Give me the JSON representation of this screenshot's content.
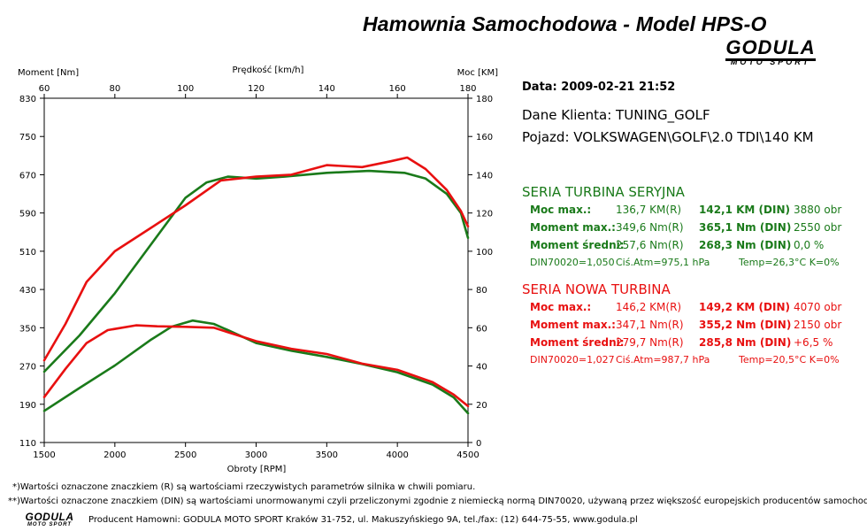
{
  "header": {
    "title": "Hamownia Samochodowa   -   Model HPS-O",
    "logo_main": "GODULA",
    "logo_sub": "MOTO SPORT"
  },
  "info": {
    "date": "Data: 2009-02-21  21:52",
    "client": "Dane Klienta: TUNING_GOLF",
    "vehicle": "Pojazd: VOLKSWAGEN\\GOLF\\2.0 TDI\\140 KM"
  },
  "colors": {
    "series1": "#1a7a1a",
    "series2": "#e81010",
    "grid": "#000000"
  },
  "stats": [
    {
      "title": "SERIA TURBINA SERYJNA",
      "color": "#1a7a1a",
      "rows": [
        {
          "label": "Moc max.:",
          "r": "136,7 KM(R)",
          "din": "142,1 KM (DIN)",
          "rpm": "3880 obr"
        },
        {
          "label": "Moment max.:",
          "r": "349,6 Nm(R)",
          "din": "365,1 Nm (DIN)",
          "rpm": "2550 obr"
        },
        {
          "label": "Moment średni:",
          "r": "257,6 Nm(R)",
          "din": "268,3 Nm (DIN)",
          "rpm": "0,0 %"
        }
      ],
      "cond": {
        "din": "DIN70020=1,050",
        "atm": "Ciś.Atm=975,1 hPa",
        "temp": "Temp=26,3°C  K=0%"
      }
    },
    {
      "title": "SERIA NOWA TURBINA",
      "color": "#e81010",
      "rows": [
        {
          "label": "Moc max.:",
          "r": "146,2 KM(R)",
          "din": "149,2 KM (DIN)",
          "rpm": "4070 obr"
        },
        {
          "label": "Moment max.:",
          "r": "347,1 Nm(R)",
          "din": "355,2 Nm (DIN)",
          "rpm": "2150 obr"
        },
        {
          "label": "Moment średni:",
          "r": "279,7 Nm(R)",
          "din": "285,8 Nm (DIN)",
          "rpm": "+6,5 %"
        }
      ],
      "cond": {
        "din": "DIN70020=1,027",
        "atm": "Ciś.Atm=987,7 hPa",
        "temp": "Temp=20,5°C  K=0%"
      }
    }
  ],
  "footer": {
    "note1": "*)Wartości oznaczone znaczkiem (R) są wartościami rzeczywistych parametrów silnika w chwili pomiaru.",
    "note2": "**)Wartości oznaczone znaczkiem (DIN) są wartościami unormowanymi czyli przeliczonymi zgodnie z niemiecką normą DIN70020, używaną przez większość europejskich producentów samochodów.",
    "producer": "Producent Hamowni: GODULA MOTO SPORT Kraków 31-752, ul. Makuszyńskiego 9A, tel./fax: (12) 644-75-55, www.godula.pl",
    "logo_main": "GODULA",
    "logo_sub": "MOTO SPORT"
  },
  "chart_data": {
    "type": "line",
    "xlabel": "Obroty [RPM]",
    "top_xlabel": "Prędkość [km/h]",
    "ylabel_left": "Moment [Nm]",
    "ylabel_right": "Moc [KM]",
    "xlim": [
      1500,
      4500
    ],
    "ylim_left": [
      110,
      830
    ],
    "ylim_right": [
      0,
      180
    ],
    "top_xlim": [
      60,
      180
    ],
    "x_ticks": [
      "1500",
      "2000",
      "2500",
      "3000",
      "3500",
      "4000",
      "4500"
    ],
    "top_ticks": [
      "60",
      "80",
      "100",
      "120",
      "140",
      "160",
      "180"
    ],
    "left_ticks": [
      "830",
      "750",
      "670",
      "590",
      "510",
      "430",
      "350",
      "270",
      "190",
      "110"
    ],
    "right_ticks": [
      "180",
      "160",
      "140",
      "120",
      "100",
      "80",
      "60",
      "40",
      "20",
      "0"
    ],
    "grid": false,
    "series": [
      {
        "group": "SERIA TURBINA SERYJNA",
        "quantity": "torque",
        "axis": "left",
        "color": "#1a7a1a",
        "x": [
          1500,
          1750,
          2000,
          2250,
          2400,
          2550,
          2700,
          2800,
          3000,
          3250,
          3500,
          3750,
          4000,
          4250,
          4400,
          4500
        ],
        "y": [
          176,
          224,
          271,
          324,
          352,
          365,
          358,
          345,
          318,
          302,
          289,
          274,
          257,
          231,
          204,
          171
        ]
      },
      {
        "group": "SERIA TURBINA SERYJNA",
        "quantity": "power",
        "axis": "right",
        "color": "#1a7a1a",
        "x": [
          1500,
          1750,
          2000,
          2250,
          2500,
          2650,
          2800,
          3000,
          3200,
          3500,
          3800,
          4050,
          4200,
          4350,
          4450,
          4500
        ],
        "y": [
          37,
          56,
          78,
          103,
          128,
          136,
          139,
          138,
          139,
          141,
          142,
          141,
          138,
          130,
          120,
          107
        ]
      },
      {
        "group": "SERIA NOWA TURBINA",
        "quantity": "torque",
        "axis": "left",
        "color": "#e81010",
        "x": [
          1500,
          1650,
          1800,
          1950,
          2150,
          2300,
          2500,
          2700,
          2850,
          3000,
          3250,
          3500,
          3750,
          4000,
          4250,
          4400,
          4500
        ],
        "y": [
          205,
          264,
          318,
          345,
          355,
          353,
          352,
          350,
          336,
          322,
          306,
          295,
          275,
          262,
          236,
          210,
          186
        ]
      },
      {
        "group": "SERIA NOWA TURBINA",
        "quantity": "power",
        "axis": "right",
        "color": "#e81010",
        "x": [
          1500,
          1650,
          1800,
          2000,
          2250,
          2500,
          2750,
          3000,
          3250,
          3500,
          3750,
          3950,
          4070,
          4200,
          4350,
          4450,
          4500
        ],
        "y": [
          43,
          62,
          84,
          100,
          112,
          124,
          137,
          139,
          140,
          145,
          144,
          147,
          149,
          143,
          132,
          121,
          113
        ]
      }
    ]
  }
}
